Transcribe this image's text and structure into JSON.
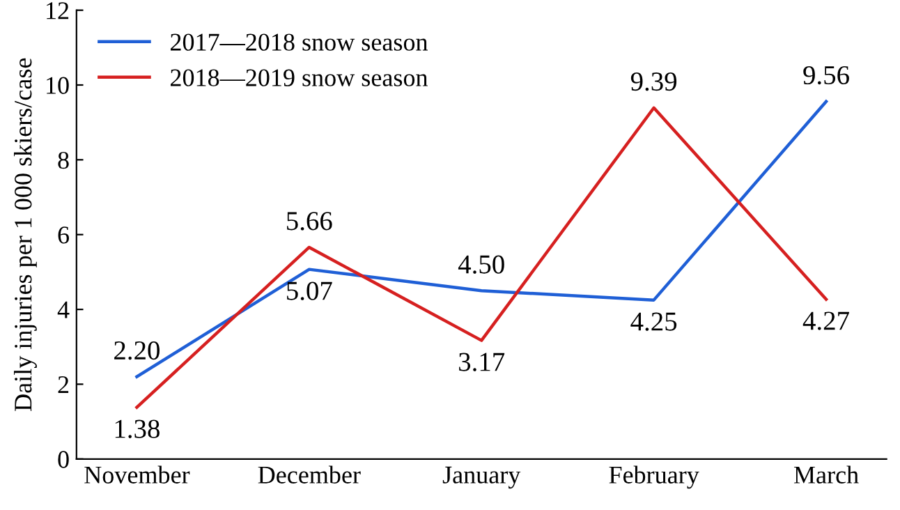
{
  "chart_data": {
    "type": "line",
    "ylabel": "Daily injuries per 1 000 skiers/case",
    "categories": [
      "November",
      "December",
      "January",
      "February",
      "March"
    ],
    "series": [
      {
        "name": "2017—2018 snow season",
        "color": "#1f5fd6",
        "values": [
          2.2,
          5.07,
          4.5,
          4.25,
          9.56
        ],
        "value_labels": [
          "2.20",
          "5.07",
          "4.50",
          "4.25",
          "9.56"
        ]
      },
      {
        "name": "2018—2019 snow season",
        "color": "#d62020",
        "values": [
          1.38,
          5.66,
          3.17,
          9.39,
          4.27
        ],
        "value_labels": [
          "1.38",
          "5.66",
          "3.17",
          "9.39",
          "4.27"
        ]
      }
    ],
    "ylim": [
      0,
      12
    ],
    "yticks": [
      0,
      2,
      4,
      6,
      8,
      10,
      12
    ],
    "grid": false,
    "legend": "top left",
    "marker": "none",
    "line_style": "solid"
  }
}
